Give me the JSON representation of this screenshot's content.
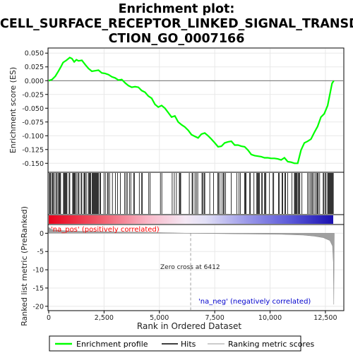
{
  "chart_data": {
    "type": "line",
    "title_line1": "Enrichment plot:",
    "title_line2": "CELL_SURFACE_RECEPTOR_LINKED_SIGNAL_TRANSDU",
    "title_line3": "CTION_GO_0007166",
    "ylabel_top": "Enrichment score (ES)",
    "ylabel_bottom": "Ranked list metric (PreRanked)",
    "xlabel": "Rank in Ordered Dataset",
    "x_ticks": [
      "0",
      "2,500",
      "5,000",
      "7,500",
      "10,000",
      "12,500"
    ],
    "x_tick_values": [
      0,
      2500,
      5000,
      7500,
      10000,
      12500
    ],
    "es_y_ticks": [
      "0.050",
      "0.025",
      "0.000",
      "-0.025",
      "-0.050",
      "-0.075",
      "-0.100",
      "-0.125",
      "-0.150"
    ],
    "es_y_tick_values": [
      0.05,
      0.025,
      0.0,
      -0.025,
      -0.05,
      -0.075,
      -0.1,
      -0.125,
      -0.15
    ],
    "metric_y_ticks": [
      "0",
      "-5",
      "-10",
      "-15",
      "-20"
    ],
    "metric_y_tick_values": [
      0,
      -5,
      -10,
      -15,
      -20
    ],
    "x_range": [
      0,
      13300
    ],
    "es_range": [
      -0.165,
      0.058
    ],
    "metric_range": [
      -21,
      2.2
    ],
    "es_curve": [
      [
        0,
        0.0
      ],
      [
        150,
        0.002
      ],
      [
        300,
        0.008
      ],
      [
        450,
        0.018
      ],
      [
        550,
        0.025
      ],
      [
        650,
        0.033
      ],
      [
        800,
        0.037
      ],
      [
        950,
        0.042
      ],
      [
        1050,
        0.04
      ],
      [
        1150,
        0.034
      ],
      [
        1250,
        0.038
      ],
      [
        1350,
        0.036
      ],
      [
        1500,
        0.037
      ],
      [
        1650,
        0.029
      ],
      [
        1800,
        0.022
      ],
      [
        1950,
        0.017
      ],
      [
        2100,
        0.018
      ],
      [
        2250,
        0.019
      ],
      [
        2400,
        0.014
      ],
      [
        2550,
        0.013
      ],
      [
        2700,
        0.011
      ],
      [
        2850,
        0.007
      ],
      [
        3000,
        0.005
      ],
      [
        3150,
        0.001
      ],
      [
        3300,
        0.002
      ],
      [
        3450,
        -0.004
      ],
      [
        3600,
        -0.009
      ],
      [
        3750,
        -0.012
      ],
      [
        3900,
        -0.011
      ],
      [
        4050,
        -0.012
      ],
      [
        4200,
        -0.018
      ],
      [
        4350,
        -0.021
      ],
      [
        4500,
        -0.028
      ],
      [
        4650,
        -0.032
      ],
      [
        4800,
        -0.043
      ],
      [
        4950,
        -0.048
      ],
      [
        5100,
        -0.045
      ],
      [
        5250,
        -0.05
      ],
      [
        5400,
        -0.058
      ],
      [
        5550,
        -0.066
      ],
      [
        5700,
        -0.064
      ],
      [
        5850,
        -0.075
      ],
      [
        6000,
        -0.08
      ],
      [
        6150,
        -0.084
      ],
      [
        6300,
        -0.09
      ],
      [
        6450,
        -0.098
      ],
      [
        6600,
        -0.101
      ],
      [
        6750,
        -0.104
      ],
      [
        6900,
        -0.097
      ],
      [
        7050,
        -0.095
      ],
      [
        7200,
        -0.1
      ],
      [
        7350,
        -0.106
      ],
      [
        7500,
        -0.113
      ],
      [
        7650,
        -0.12
      ],
      [
        7800,
        -0.119
      ],
      [
        7950,
        -0.113
      ],
      [
        8100,
        -0.111
      ],
      [
        8250,
        -0.11
      ],
      [
        8400,
        -0.117
      ],
      [
        8550,
        -0.117
      ],
      [
        8700,
        -0.119
      ],
      [
        8850,
        -0.12
      ],
      [
        9000,
        -0.126
      ],
      [
        9150,
        -0.134
      ],
      [
        9300,
        -0.136
      ],
      [
        9450,
        -0.137
      ],
      [
        9600,
        -0.138
      ],
      [
        9750,
        -0.14
      ],
      [
        9900,
        -0.14
      ],
      [
        10050,
        -0.141
      ],
      [
        10200,
        -0.141
      ],
      [
        10350,
        -0.142
      ],
      [
        10500,
        -0.144
      ],
      [
        10650,
        -0.14
      ],
      [
        10800,
        -0.147
      ],
      [
        10950,
        -0.148
      ],
      [
        11100,
        -0.15
      ],
      [
        11250,
        -0.15
      ],
      [
        11400,
        -0.126
      ],
      [
        11550,
        -0.113
      ],
      [
        11700,
        -0.11
      ],
      [
        11850,
        -0.106
      ],
      [
        12000,
        -0.094
      ],
      [
        12150,
        -0.083
      ],
      [
        12300,
        -0.066
      ],
      [
        12450,
        -0.06
      ],
      [
        12600,
        -0.045
      ],
      [
        12700,
        -0.025
      ],
      [
        12800,
        -0.005
      ],
      [
        12880,
        0.0
      ]
    ],
    "hit_segments": [
      [
        30,
        1000,
        0.78
      ],
      [
        1080,
        1750,
        0.62
      ],
      [
        1800,
        2350,
        0.7
      ],
      [
        2400,
        2900,
        0.5
      ],
      [
        2950,
        3500,
        0.42
      ],
      [
        3550,
        4100,
        0.38
      ],
      [
        4200,
        4700,
        0.3
      ],
      [
        4950,
        5300,
        0.3
      ],
      [
        5450,
        5800,
        0.22
      ],
      [
        5900,
        6250,
        0.18
      ],
      [
        6350,
        7400,
        0.35
      ],
      [
        7450,
        8300,
        0.4
      ],
      [
        8400,
        8950,
        0.3
      ],
      [
        9050,
        10250,
        0.4
      ],
      [
        10350,
        11000,
        0.48
      ],
      [
        11100,
        11250,
        0.9
      ],
      [
        11280,
        12000,
        0.6
      ],
      [
        12050,
        12550,
        0.62
      ],
      [
        12600,
        12880,
        0.95
      ]
    ],
    "zero_cross_value": 6412,
    "zero_cross_label": "Zero cross at 6412",
    "pos_label": "'na_pos' (positively correlated)",
    "neg_label": "'na_neg' (negatively correlated)",
    "legend": [
      "Enrichment profile",
      "Hits",
      "Ranking metric scores"
    ],
    "colors": {
      "es_line": "#00ff00",
      "pos_label": "#ff0000",
      "neg_label": "#0000cc",
      "metric_fill": "#a0a0a0",
      "grid": "#e8e8e8"
    }
  }
}
